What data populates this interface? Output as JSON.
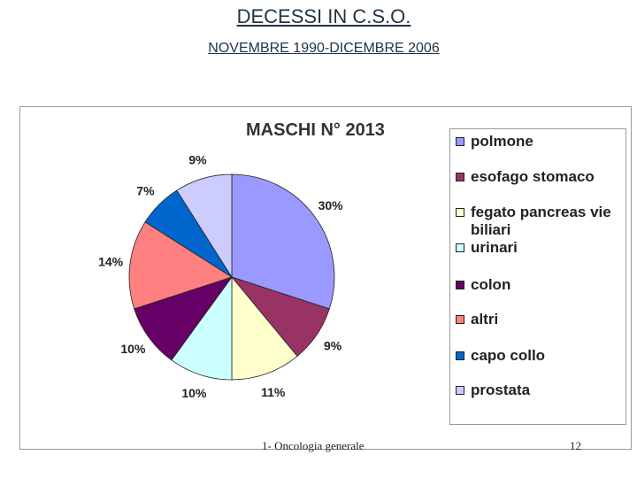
{
  "header": {
    "title": "DECESSI IN C.S.O.",
    "subtitle": "NOVEMBRE 1990-DICEMBRE 2006"
  },
  "chart_data": {
    "type": "pie",
    "title": "MASCHI N° 2013",
    "legend_position": "right",
    "slices": [
      {
        "name": "polmone",
        "value": 30,
        "label": "30%",
        "color": "#9999ff"
      },
      {
        "name": "esofago stomaco",
        "value": 9,
        "label": "9%",
        "color": "#993366"
      },
      {
        "name": "fegato pancreas vie biliari",
        "value": 11,
        "label": "11%",
        "color": "#ffffcc"
      },
      {
        "name": "urinari",
        "value": 10,
        "label": "10%",
        "color": "#ccffff"
      },
      {
        "name": "colon",
        "value": 10,
        "label": "10%",
        "color": "#660066"
      },
      {
        "name": "altri",
        "value": 14,
        "label": "14%",
        "color": "#ff8080"
      },
      {
        "name": "capo collo",
        "value": 7,
        "label": "7%",
        "color": "#0066cc"
      },
      {
        "name": "prostata",
        "value": 9,
        "label": "9%",
        "color": "#ccccff"
      }
    ]
  },
  "footer": {
    "left": "1- Oncologia generale",
    "page_number": "12"
  }
}
